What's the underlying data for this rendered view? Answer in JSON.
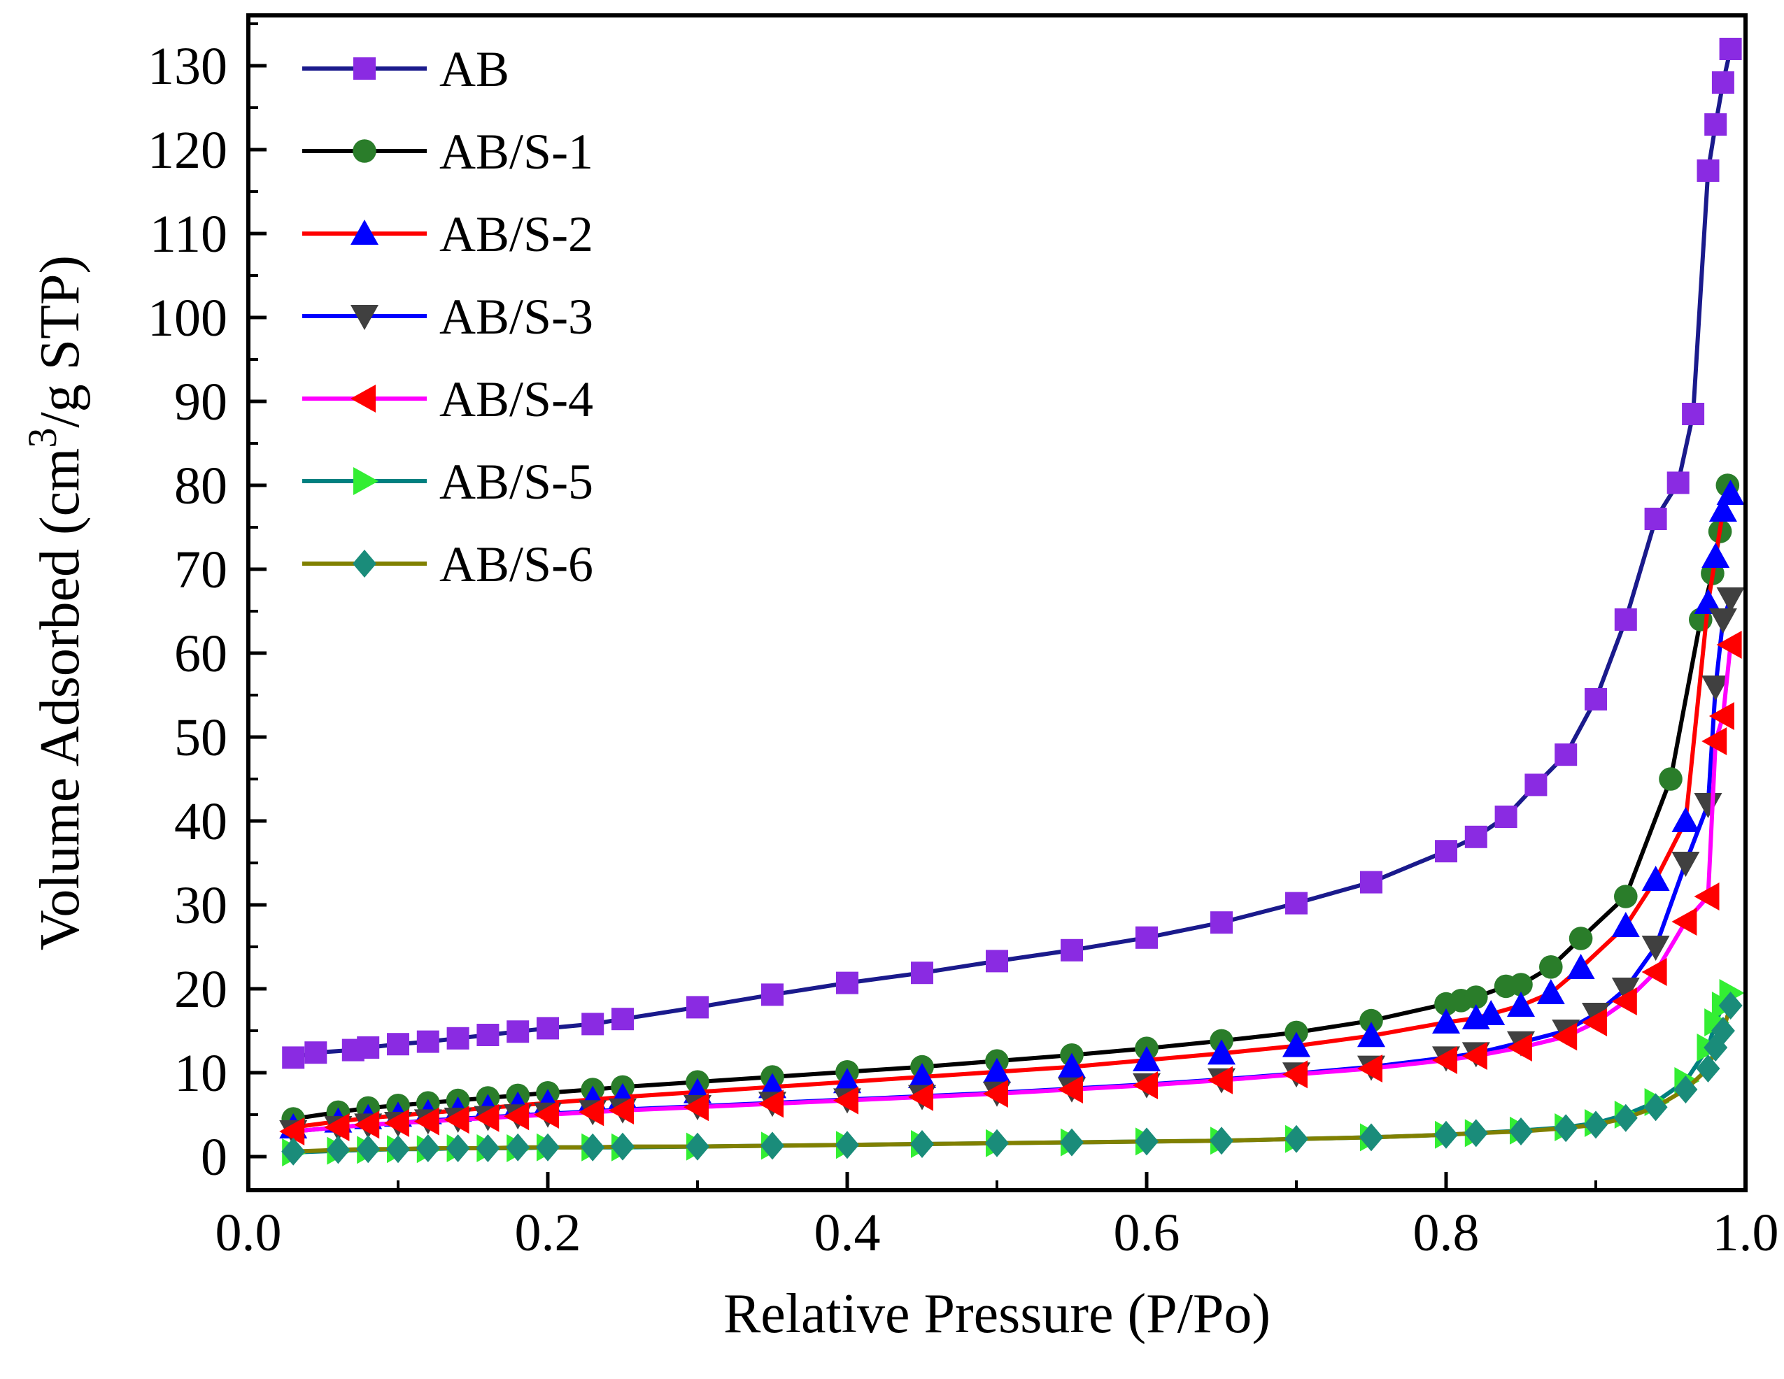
{
  "chart_data": {
    "type": "line",
    "title": "",
    "xlabel": "Relative Pressure (P/Po)",
    "ylabel": "Volume Adsorbed (cm3/g STP)",
    "ylabel_parts": {
      "before": "Volume Adsorbed (cm",
      "sup": "3",
      "after": "/g STP)"
    },
    "xlim": [
      0.0,
      1.0
    ],
    "ylim": [
      -4,
      136
    ],
    "xticks": [
      0.0,
      0.2,
      0.4,
      0.6,
      0.8,
      1.0
    ],
    "xtick_labels": [
      "0.0",
      "0.2",
      "0.4",
      "0.6",
      "0.8",
      "1.0"
    ],
    "yticks": [
      0,
      10,
      20,
      30,
      40,
      50,
      60,
      70,
      80,
      90,
      100,
      110,
      120,
      130
    ],
    "ytick_labels": [
      "0",
      "10",
      "20",
      "30",
      "40",
      "50",
      "60",
      "70",
      "80",
      "90",
      "100",
      "110",
      "120",
      "130"
    ],
    "grid": false,
    "legend_position": "top-left",
    "series": [
      {
        "name": "AB",
        "line_color": "#1a1a8c",
        "marker_color": "#8a2be2",
        "marker": "square",
        "x": [
          0.03,
          0.045,
          0.07,
          0.08,
          0.1,
          0.12,
          0.14,
          0.16,
          0.18,
          0.2,
          0.23,
          0.25,
          0.3,
          0.35,
          0.4,
          0.45,
          0.5,
          0.55,
          0.6,
          0.65,
          0.7,
          0.75,
          0.8,
          0.82,
          0.84,
          0.86,
          0.88,
          0.9,
          0.92,
          0.94,
          0.955,
          0.965,
          0.975,
          0.98,
          0.985,
          0.99
        ],
        "y": [
          11.8,
          12.4,
          12.7,
          13.0,
          13.4,
          13.7,
          14.1,
          14.5,
          14.9,
          15.3,
          15.8,
          16.4,
          17.8,
          19.3,
          20.7,
          21.9,
          23.3,
          24.6,
          26.1,
          27.9,
          30.2,
          32.7,
          36.4,
          38.1,
          40.5,
          44.3,
          47.9,
          54.5,
          64.0,
          76.0,
          80.3,
          88.5,
          117.5,
          123.0,
          128.0,
          132.0
        ]
      },
      {
        "name": "AB/S-1",
        "line_color": "#000000",
        "marker_color": "#2a7d2a",
        "marker": "circle",
        "x": [
          0.03,
          0.06,
          0.08,
          0.1,
          0.12,
          0.14,
          0.16,
          0.18,
          0.2,
          0.23,
          0.25,
          0.3,
          0.35,
          0.4,
          0.45,
          0.5,
          0.55,
          0.6,
          0.65,
          0.7,
          0.75,
          0.8,
          0.81,
          0.82,
          0.84,
          0.85,
          0.87,
          0.89,
          0.92,
          0.95,
          0.97,
          0.978,
          0.983,
          0.988
        ],
        "y": [
          4.5,
          5.3,
          5.8,
          6.1,
          6.4,
          6.7,
          7.0,
          7.3,
          7.6,
          8.0,
          8.3,
          8.9,
          9.5,
          10.1,
          10.7,
          11.4,
          12.1,
          12.9,
          13.8,
          14.8,
          16.2,
          18.2,
          18.6,
          19.0,
          20.3,
          20.5,
          22.6,
          26.0,
          31.0,
          45.0,
          64.0,
          69.5,
          74.5,
          80.0
        ]
      },
      {
        "name": "AB/S-2",
        "line_color": "#ff0000",
        "marker_color": "#0000ff",
        "marker": "triangle-up",
        "x": [
          0.03,
          0.06,
          0.08,
          0.1,
          0.12,
          0.14,
          0.16,
          0.18,
          0.2,
          0.23,
          0.25,
          0.3,
          0.35,
          0.4,
          0.45,
          0.5,
          0.55,
          0.6,
          0.65,
          0.7,
          0.75,
          0.8,
          0.82,
          0.83,
          0.85,
          0.87,
          0.89,
          0.92,
          0.94,
          0.96,
          0.975,
          0.98,
          0.985,
          0.99
        ],
        "y": [
          3.5,
          4.2,
          4.6,
          4.9,
          5.2,
          5.5,
          5.8,
          6.1,
          6.4,
          6.8,
          7.1,
          7.7,
          8.3,
          8.9,
          9.5,
          10.1,
          10.7,
          11.5,
          12.3,
          13.2,
          14.4,
          16.0,
          16.5,
          17.0,
          18.0,
          19.5,
          22.5,
          27.5,
          33.0,
          40.0,
          66.0,
          71.5,
          77.0,
          79.0
        ]
      },
      {
        "name": "AB/S-3",
        "line_color": "#0000ff",
        "marker_color": "#404040",
        "marker": "triangle-down",
        "x": [
          0.03,
          0.06,
          0.08,
          0.1,
          0.12,
          0.14,
          0.16,
          0.18,
          0.2,
          0.23,
          0.25,
          0.3,
          0.35,
          0.4,
          0.45,
          0.5,
          0.55,
          0.6,
          0.65,
          0.7,
          0.75,
          0.8,
          0.82,
          0.85,
          0.88,
          0.9,
          0.92,
          0.94,
          0.96,
          0.975,
          0.98,
          0.985,
          0.99
        ],
        "y": [
          3.0,
          3.5,
          3.8,
          4.0,
          4.3,
          4.5,
          4.7,
          4.9,
          5.1,
          5.4,
          5.6,
          6.0,
          6.4,
          6.8,
          7.2,
          7.6,
          8.1,
          8.6,
          9.2,
          9.9,
          10.7,
          11.8,
          12.3,
          13.6,
          15.0,
          17.0,
          20.0,
          25.0,
          35.0,
          42.0,
          56.0,
          64.0,
          66.5
        ]
      },
      {
        "name": "AB/S-4",
        "line_color": "#ff00ff",
        "marker_color": "#ff0000",
        "marker": "triangle-left",
        "x": [
          0.03,
          0.06,
          0.08,
          0.1,
          0.12,
          0.14,
          0.16,
          0.18,
          0.2,
          0.23,
          0.25,
          0.3,
          0.35,
          0.4,
          0.45,
          0.5,
          0.55,
          0.6,
          0.65,
          0.7,
          0.75,
          0.8,
          0.82,
          0.85,
          0.88,
          0.9,
          0.92,
          0.94,
          0.96,
          0.975,
          0.98,
          0.985,
          0.99
        ],
        "y": [
          3.0,
          3.5,
          3.8,
          4.0,
          4.2,
          4.4,
          4.6,
          4.8,
          5.0,
          5.3,
          5.5,
          5.9,
          6.3,
          6.7,
          7.1,
          7.5,
          8.0,
          8.5,
          9.1,
          9.8,
          10.5,
          11.5,
          12.0,
          13.0,
          14.3,
          16.0,
          18.5,
          22.0,
          28.0,
          31.0,
          49.5,
          52.5,
          61.0
        ]
      },
      {
        "name": "AB/S-5",
        "line_color": "#008080",
        "marker_color": "#33ee33",
        "marker": "triangle-right",
        "x": [
          0.03,
          0.06,
          0.08,
          0.1,
          0.12,
          0.14,
          0.16,
          0.18,
          0.2,
          0.23,
          0.25,
          0.3,
          0.35,
          0.4,
          0.45,
          0.5,
          0.55,
          0.6,
          0.65,
          0.7,
          0.75,
          0.8,
          0.82,
          0.85,
          0.88,
          0.9,
          0.92,
          0.94,
          0.96,
          0.975,
          0.98,
          0.985,
          0.99
        ],
        "y": [
          0.5,
          0.7,
          0.8,
          0.9,
          0.9,
          1.0,
          1.0,
          1.0,
          1.1,
          1.1,
          1.1,
          1.2,
          1.3,
          1.4,
          1.5,
          1.6,
          1.7,
          1.8,
          1.9,
          2.1,
          2.3,
          2.6,
          2.8,
          3.1,
          3.5,
          4.0,
          5.0,
          6.5,
          9.0,
          13.0,
          16.0,
          18.0,
          19.5
        ]
      },
      {
        "name": "AB/S-6",
        "line_color": "#808000",
        "marker_color": "#1a8c7a",
        "marker": "diamond",
        "x": [
          0.03,
          0.06,
          0.08,
          0.1,
          0.12,
          0.14,
          0.16,
          0.18,
          0.2,
          0.23,
          0.25,
          0.3,
          0.35,
          0.4,
          0.45,
          0.5,
          0.55,
          0.6,
          0.65,
          0.7,
          0.75,
          0.8,
          0.82,
          0.85,
          0.88,
          0.9,
          0.92,
          0.94,
          0.96,
          0.975,
          0.98,
          0.985,
          0.99
        ],
        "y": [
          0.6,
          0.8,
          0.9,
          0.9,
          1.0,
          1.0,
          1.0,
          1.1,
          1.1,
          1.1,
          1.2,
          1.2,
          1.3,
          1.4,
          1.5,
          1.6,
          1.7,
          1.8,
          1.9,
          2.1,
          2.3,
          2.6,
          2.8,
          3.0,
          3.4,
          3.8,
          4.6,
          5.9,
          8.0,
          10.5,
          13.0,
          15.0,
          18.0
        ]
      }
    ]
  }
}
